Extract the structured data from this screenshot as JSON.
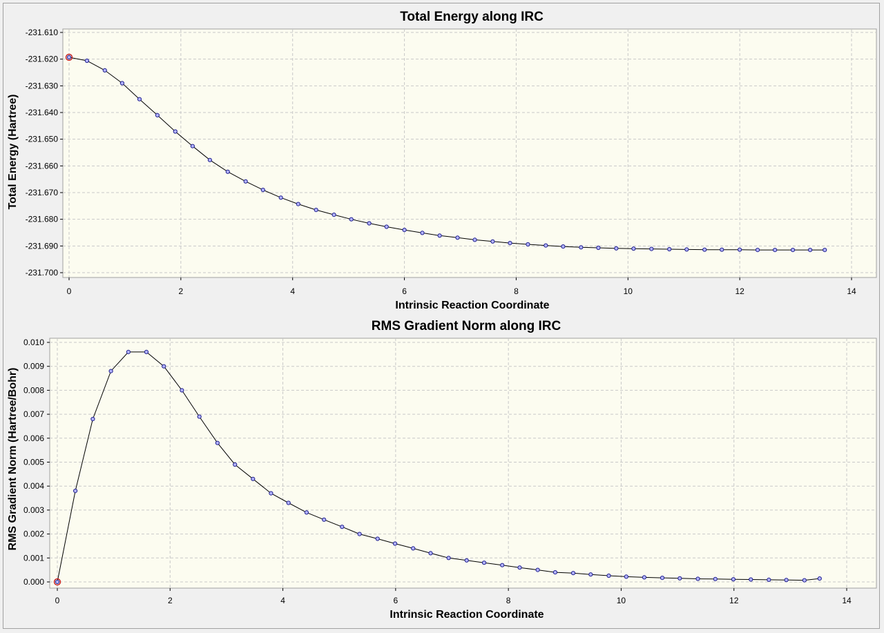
{
  "chart_data": [
    {
      "type": "scatter",
      "title": "Total Energy along IRC",
      "xlabel": "Intrinsic Reaction Coordinate",
      "ylabel": "Total Energy (Hartree)",
      "xlim": [
        0,
        14
      ],
      "ylim": [
        -231.7,
        -231.61
      ],
      "xticks": [
        "0",
        "2",
        "4",
        "6",
        "8",
        "10",
        "12",
        "14"
      ],
      "yticks": [
        "-231.610",
        "-231.620",
        "-231.630",
        "-231.640",
        "-231.650",
        "-231.660",
        "-231.670",
        "-231.680",
        "-231.690",
        "-231.700"
      ],
      "grid": true,
      "line_color": "#000000",
      "marker_color": "#b4b4ff",
      "highlight_color": "#c00000",
      "highlight_index": 0,
      "x": [
        0,
        0.32,
        0.64,
        0.95,
        1.26,
        1.58,
        1.9,
        2.21,
        2.52,
        2.84,
        3.16,
        3.47,
        3.79,
        4.1,
        4.42,
        4.74,
        5.05,
        5.37,
        5.68,
        6.0,
        6.32,
        6.63,
        6.95,
        7.26,
        7.58,
        7.89,
        8.21,
        8.53,
        8.84,
        9.16,
        9.47,
        9.79,
        10.1,
        10.42,
        10.74,
        11.05,
        11.37,
        11.68,
        12.0,
        12.32,
        12.63,
        12.95,
        13.26,
        13.52
      ],
      "y": [
        -231.6193,
        -231.6206,
        -231.6242,
        -231.629,
        -231.635,
        -231.641,
        -231.6471,
        -231.6526,
        -231.6578,
        -231.6622,
        -231.6658,
        -231.669,
        -231.6719,
        -231.6743,
        -231.6765,
        -231.6783,
        -231.68,
        -231.6815,
        -231.6828,
        -231.684,
        -231.6851,
        -231.6861,
        -231.6869,
        -231.6877,
        -231.6883,
        -231.6889,
        -231.6894,
        -231.6898,
        -231.6902,
        -231.6905,
        -231.6907,
        -231.6909,
        -231.691,
        -231.6911,
        -231.6912,
        -231.6913,
        -231.6914,
        -231.6914,
        -231.6914,
        -231.6915,
        -231.6915,
        -231.6915,
        -231.6915,
        -231.6915
      ]
    },
    {
      "type": "scatter",
      "title": "RMS Gradient Norm along IRC",
      "xlabel": "Intrinsic Reaction Coordinate",
      "ylabel": "RMS Gradient Norm (Hartree/Bohr)",
      "xlim": [
        0,
        14
      ],
      "ylim": [
        0,
        0.01
      ],
      "xticks": [
        "0",
        "2",
        "4",
        "6",
        "8",
        "10",
        "12",
        "14"
      ],
      "yticks": [
        "0.010",
        "0.009",
        "0.008",
        "0.007",
        "0.006",
        "0.005",
        "0.004",
        "0.003",
        "0.002",
        "0.001",
        "0.000"
      ],
      "grid": true,
      "line_color": "#000000",
      "marker_color": "#b4b4ff",
      "highlight_color": "#c00000",
      "highlight_index": 0,
      "x": [
        0,
        0.32,
        0.63,
        0.95,
        1.26,
        1.58,
        1.89,
        2.21,
        2.52,
        2.84,
        3.15,
        3.47,
        3.79,
        4.1,
        4.42,
        4.73,
        5.05,
        5.36,
        5.68,
        5.99,
        6.31,
        6.62,
        6.94,
        7.26,
        7.57,
        7.89,
        8.2,
        8.52,
        8.83,
        9.15,
        9.46,
        9.78,
        10.09,
        10.41,
        10.73,
        11.04,
        11.36,
        11.67,
        11.99,
        12.3,
        12.62,
        12.93,
        13.25,
        13.52
      ],
      "y": [
        0.0,
        0.0038,
        0.0068,
        0.0088,
        0.0096,
        0.0096,
        0.009,
        0.008,
        0.0069,
        0.0058,
        0.0049,
        0.0043,
        0.0037,
        0.0033,
        0.0029,
        0.0026,
        0.0023,
        0.002,
        0.0018,
        0.0016,
        0.0014,
        0.0012,
        0.001,
        0.0009,
        0.0008,
        0.0007,
        0.0006,
        0.0005,
        0.0004,
        0.00037,
        0.00031,
        0.00026,
        0.00022,
        0.00019,
        0.00017,
        0.00015,
        0.00013,
        0.00012,
        0.00011,
        0.0001,
        9e-05,
        8e-05,
        7e-05,
        0.00014
      ]
    }
  ]
}
